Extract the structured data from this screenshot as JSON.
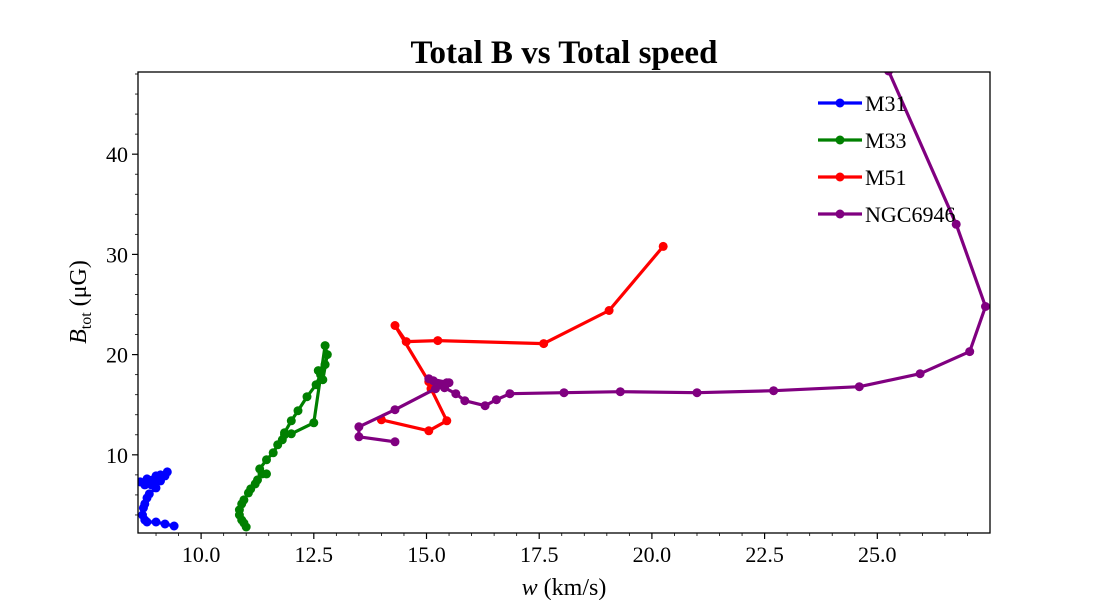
{
  "chart_data": {
    "type": "line",
    "title": "Total B vs Total speed",
    "xlabel": {
      "var": "w",
      "unit": " (km/s)"
    },
    "ylabel": {
      "var": "B",
      "sub": "tot",
      "unit": " (μG)"
    },
    "xlim": [
      8.6,
      27.5
    ],
    "ylim": [
      2.2,
      48.2
    ],
    "xticks": [
      10.0,
      12.5,
      15.0,
      17.5,
      20.0,
      22.5,
      25.0
    ],
    "xtick_labels": [
      "10.0",
      "12.5",
      "15.0",
      "17.5",
      "20.0",
      "22.5",
      "25.0"
    ],
    "yticks": [
      10,
      20,
      30,
      40
    ],
    "ytick_labels": [
      "10",
      "20",
      "30",
      "40"
    ],
    "legend_position": "upper right",
    "grid": false,
    "series": [
      {
        "name": "M31",
        "color": "#0000ff",
        "x": [
          9.4,
          9.2,
          9.0,
          8.8,
          8.75,
          8.7,
          8.72,
          8.75,
          8.8,
          8.85,
          9.0,
          8.9,
          8.95,
          9.1,
          9.2,
          9.1,
          8.95,
          8.75,
          8.65,
          8.8,
          9.0,
          9.1,
          9.25
        ],
        "y": [
          2.9,
          3.1,
          3.3,
          3.3,
          3.5,
          4.0,
          4.7,
          5.1,
          5.7,
          6.1,
          6.7,
          7.0,
          7.5,
          7.6,
          7.9,
          7.4,
          7.2,
          7.0,
          7.3,
          7.6,
          7.9,
          8.0,
          8.3
        ]
      },
      {
        "name": "M33",
        "color": "#008000",
        "x": [
          11.0,
          10.95,
          10.9,
          10.85,
          10.85,
          10.9,
          10.95,
          11.05,
          11.1,
          11.2,
          11.25,
          11.35,
          11.45,
          11.3,
          11.45,
          11.6,
          11.7,
          11.8,
          11.85,
          12.0,
          12.15,
          12.35,
          12.55,
          12.65,
          12.6,
          12.75,
          12.7,
          12.8,
          12.75,
          12.5,
          12.0,
          11.85
        ],
        "y": [
          2.8,
          3.2,
          3.5,
          4.0,
          4.5,
          5.1,
          5.5,
          6.2,
          6.6,
          7.1,
          7.5,
          8.1,
          8.1,
          8.6,
          9.5,
          10.2,
          11.0,
          11.5,
          12.2,
          13.4,
          14.4,
          15.8,
          17.0,
          18.0,
          18.4,
          19.0,
          17.5,
          20.0,
          20.9,
          13.2,
          12.1,
          12.0
        ]
      },
      {
        "name": "M51",
        "color": "#ff0000",
        "x": [
          20.25,
          19.05,
          17.6,
          15.25,
          14.55,
          14.3,
          15.05,
          15.1,
          15.45,
          15.05,
          14.0
        ],
        "y": [
          30.8,
          24.4,
          21.1,
          21.4,
          21.3,
          22.9,
          17.3,
          16.6,
          13.4,
          12.4,
          13.5
        ]
      },
      {
        "name": "NGC6946",
        "color": "#800080",
        "x": [
          14.3,
          13.5,
          13.5,
          14.3,
          15.2,
          15.45,
          15.3,
          15.5,
          15.05,
          15.15,
          15.4,
          15.65,
          15.85,
          16.3,
          16.55,
          16.85,
          18.05,
          19.3,
          21.0,
          22.7,
          24.6,
          25.95,
          27.05,
          27.4,
          26.75,
          25.25
        ],
        "y": [
          11.3,
          11.8,
          12.8,
          14.5,
          16.6,
          17.2,
          17.0,
          17.2,
          17.6,
          17.4,
          16.7,
          16.1,
          15.4,
          14.9,
          15.5,
          16.1,
          16.2,
          16.3,
          16.2,
          16.4,
          16.8,
          18.1,
          20.3,
          24.8,
          33.0,
          48.3
        ]
      }
    ]
  }
}
